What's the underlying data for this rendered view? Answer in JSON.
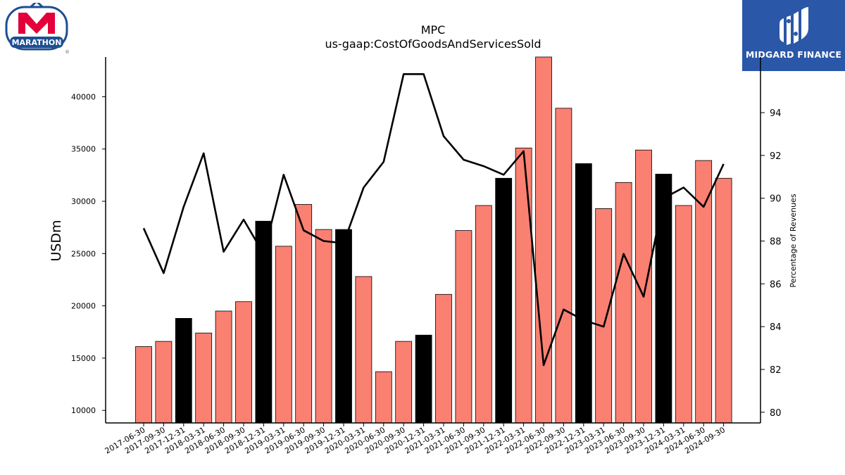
{
  "logos": {
    "company_wordmark": "MARATHON",
    "brand_name": "MIDGARD FINANCE"
  },
  "colors": {
    "bar_default": "#fa8072",
    "bar_year_end": "#000000",
    "line": "#000000",
    "brand_blue": "#2a57a8",
    "marathon_red": "#e4003a",
    "marathon_blue": "#1d4f91"
  },
  "chart_data": {
    "type": "bar",
    "title": "MPC",
    "subtitle": "us-gaap:CostOfGoodsAndServicesSold",
    "ylabel": "USDm",
    "y2label": "Percentage of Revenues",
    "ylim": [
      8800,
      43800
    ],
    "y2lim": [
      79.5,
      96.6
    ],
    "yticks": [
      10000,
      15000,
      20000,
      25000,
      30000,
      35000,
      40000
    ],
    "y2ticks": [
      80,
      82,
      84,
      86,
      88,
      90,
      92,
      94
    ],
    "categories": [
      "2017-06-30",
      "2017-09-30",
      "2017-12-31",
      "2018-03-31",
      "2018-06-30",
      "2018-09-30",
      "2018-12-31",
      "2019-03-31",
      "2019-06-30",
      "2019-09-30",
      "2019-12-31",
      "2020-03-31",
      "2020-06-30",
      "2020-09-30",
      "2020-12-31",
      "2021-03-31",
      "2021-06-30",
      "2021-09-30",
      "2021-12-31",
      "2022-03-31",
      "2022-06-30",
      "2022-09-30",
      "2022-12-31",
      "2023-03-31",
      "2023-06-30",
      "2023-09-30",
      "2023-12-31",
      "2024-03-31",
      "2024-06-30",
      "2024-09-30"
    ],
    "series": [
      {
        "kind": "bar",
        "axis": "left",
        "values": [
          16100,
          16600,
          18800,
          17400,
          19500,
          20400,
          28100,
          25700,
          29700,
          27300,
          27300,
          22800,
          13700,
          16600,
          17200,
          21100,
          27200,
          29600,
          32200,
          35100,
          43900,
          38900,
          33600,
          29300,
          31800,
          34900,
          32600,
          29600,
          33900,
          32200
        ],
        "year_end_highlight": [
          false,
          false,
          true,
          false,
          false,
          false,
          true,
          false,
          false,
          false,
          true,
          false,
          false,
          false,
          true,
          false,
          false,
          false,
          true,
          false,
          false,
          false,
          true,
          false,
          false,
          false,
          true,
          false,
          false,
          false
        ]
      },
      {
        "kind": "line",
        "axis": "right",
        "values": [
          88.6,
          86.5,
          89.6,
          92.1,
          87.5,
          89.0,
          87.4,
          91.1,
          88.5,
          88.0,
          87.9,
          90.5,
          91.7,
          95.8,
          95.8,
          92.9,
          91.8,
          91.5,
          91.1,
          92.2,
          82.2,
          84.8,
          84.3,
          84.0,
          87.4,
          85.4,
          90.0,
          90.5,
          89.6,
          91.6
        ]
      }
    ],
    "grid": false,
    "legend": "none"
  }
}
